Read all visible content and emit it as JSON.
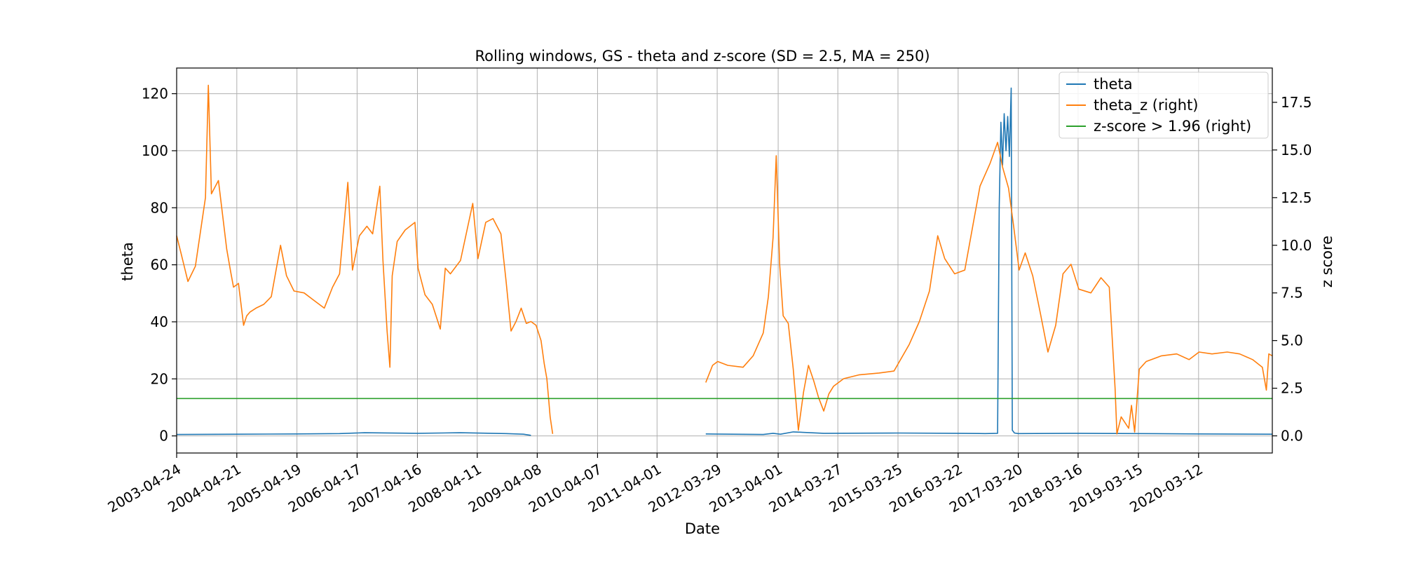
{
  "chart_data": {
    "type": "line",
    "title": "Rolling windows, GS - theta and z-score (SD = 2.5, MA = 250)",
    "xlabel": "Date",
    "ylabel_left": "theta",
    "ylabel_right": "z score",
    "x_range": [
      "2003-04-24",
      "2021-05-31"
    ],
    "ylim_left": [
      -6,
      129
    ],
    "ylim_right": [
      -0.9,
      19.3
    ],
    "yticks_left": [
      0,
      20,
      40,
      60,
      80,
      100,
      120
    ],
    "yticks_right": [
      0.0,
      2.5,
      5.0,
      7.5,
      10.0,
      12.5,
      15.0,
      17.5
    ],
    "xticks": [
      "2003-04-24",
      "2004-04-21",
      "2005-04-19",
      "2006-04-17",
      "2007-04-16",
      "2008-04-11",
      "2009-04-08",
      "2010-04-07",
      "2011-04-01",
      "2012-03-29",
      "2013-04-01",
      "2014-03-27",
      "2015-03-25",
      "2016-03-22",
      "2017-03-20",
      "2018-03-16",
      "2019-03-15",
      "2020-03-12"
    ],
    "grid": true,
    "legend_position": "top-right",
    "colors": {
      "theta": "#1f77b4",
      "theta_z": "#ff7f0e",
      "threshold": "#2ca02c"
    },
    "series": [
      {
        "name": "theta",
        "axis": "left",
        "segments": [
          [
            [
              "2003-04-24",
              0.5
            ],
            [
              "2004-04-21",
              0.6
            ],
            [
              "2005-04-19",
              0.7
            ],
            [
              "2006-01-01",
              0.8
            ],
            [
              "2006-06-01",
              1.1
            ],
            [
              "2007-04-16",
              0.9
            ],
            [
              "2008-01-01",
              1.1
            ],
            [
              "2008-10-01",
              0.8
            ],
            [
              "2009-01-15",
              0.6
            ],
            [
              "2009-03-01",
              0.2
            ]
          ],
          [
            [
              "2012-01-20",
              0.7
            ],
            [
              "2012-07-01",
              0.6
            ],
            [
              "2013-01-01",
              0.5
            ],
            [
              "2013-03-01",
              0.9
            ],
            [
              "2013-04-15",
              0.6
            ],
            [
              "2013-07-01",
              1.4
            ],
            [
              "2014-01-01",
              0.9
            ],
            [
              "2015-03-25",
              1.0
            ],
            [
              "2016-03-22",
              0.9
            ],
            [
              "2016-09-01",
              0.8
            ],
            [
              "2016-11-15",
              0.9
            ],
            [
              "2016-11-25",
              80
            ],
            [
              "2016-12-05",
              110
            ],
            [
              "2016-12-15",
              95
            ],
            [
              "2016-12-25",
              113
            ],
            [
              "2017-01-05",
              100
            ],
            [
              "2017-01-15",
              112
            ],
            [
              "2017-01-25",
              98
            ],
            [
              "2017-02-05",
              122
            ],
            [
              "2017-02-12",
              2
            ],
            [
              "2017-02-25",
              1.0
            ],
            [
              "2017-03-20",
              0.8
            ],
            [
              "2018-03-16",
              0.9
            ],
            [
              "2019-03-15",
              0.8
            ],
            [
              "2020-03-12",
              0.7
            ],
            [
              "2021-05-31",
              0.6
            ]
          ]
        ]
      },
      {
        "name": "theta_z (right)",
        "axis": "right",
        "segments": [
          [
            [
              "2003-04-24",
              10.5
            ],
            [
              "2003-05-20",
              9.6
            ],
            [
              "2003-07-01",
              8.1
            ],
            [
              "2003-08-15",
              8.9
            ],
            [
              "2003-10-15",
              12.5
            ],
            [
              "2003-11-01",
              18.4
            ],
            [
              "2003-11-20",
              12.7
            ],
            [
              "2004-01-01",
              13.4
            ],
            [
              "2004-02-20",
              9.8
            ],
            [
              "2004-03-15",
              8.6
            ],
            [
              "2004-04-01",
              7.8
            ],
            [
              "2004-05-01",
              8.0
            ],
            [
              "2004-06-01",
              5.8
            ],
            [
              "2004-06-20",
              6.3
            ],
            [
              "2004-07-10",
              6.5
            ],
            [
              "2004-08-15",
              6.7
            ],
            [
              "2004-10-01",
              6.9
            ],
            [
              "2004-11-15",
              7.3
            ],
            [
              "2005-01-10",
              10.0
            ],
            [
              "2005-02-15",
              8.4
            ],
            [
              "2005-04-01",
              7.6
            ],
            [
              "2005-06-01",
              7.5
            ],
            [
              "2005-08-01",
              7.1
            ],
            [
              "2005-10-01",
              6.7
            ],
            [
              "2005-11-20",
              7.8
            ],
            [
              "2006-01-01",
              8.5
            ],
            [
              "2006-02-20",
              13.3
            ],
            [
              "2006-03-20",
              8.7
            ],
            [
              "2006-05-01",
              10.5
            ],
            [
              "2006-06-15",
              11.0
            ],
            [
              "2006-07-20",
              10.6
            ],
            [
              "2006-09-01",
              13.1
            ],
            [
              "2006-09-20",
              9.2
            ],
            [
              "2006-10-15",
              5.5
            ],
            [
              "2006-11-01",
              3.6
            ],
            [
              "2006-11-15",
              8.4
            ],
            [
              "2006-12-15",
              10.2
            ],
            [
              "2007-02-01",
              10.8
            ],
            [
              "2007-04-01",
              11.2
            ],
            [
              "2007-04-20",
              8.8
            ],
            [
              "2007-06-01",
              7.4
            ],
            [
              "2007-07-15",
              6.9
            ],
            [
              "2007-09-01",
              5.6
            ],
            [
              "2007-10-01",
              8.8
            ],
            [
              "2007-11-01",
              8.5
            ],
            [
              "2008-01-01",
              9.2
            ],
            [
              "2008-03-15",
              12.2
            ],
            [
              "2008-04-15",
              9.3
            ],
            [
              "2008-06-01",
              11.2
            ],
            [
              "2008-07-15",
              11.4
            ],
            [
              "2008-09-01",
              10.6
            ],
            [
              "2008-10-01",
              8.2
            ],
            [
              "2008-11-01",
              5.5
            ],
            [
              "2008-12-01",
              6.0
            ],
            [
              "2009-01-01",
              6.7
            ],
            [
              "2009-02-01",
              5.9
            ],
            [
              "2009-03-01",
              6.0
            ],
            [
              "2009-04-01",
              5.8
            ],
            [
              "2009-05-01",
              5.0
            ],
            [
              "2009-05-20",
              3.8
            ],
            [
              "2009-06-05",
              3.0
            ],
            [
              "2009-06-15",
              2.0
            ],
            [
              "2009-06-25",
              1.0
            ],
            [
              "2009-07-10",
              0.1
            ]
          ],
          [
            [
              "2012-01-20",
              2.8
            ],
            [
              "2012-03-01",
              3.7
            ],
            [
              "2012-04-01",
              3.9
            ],
            [
              "2012-06-01",
              3.7
            ],
            [
              "2012-09-01",
              3.6
            ],
            [
              "2012-11-01",
              4.2
            ],
            [
              "2013-01-01",
              5.4
            ],
            [
              "2013-02-01",
              7.3
            ],
            [
              "2013-03-01",
              10.4
            ],
            [
              "2013-03-20",
              14.7
            ],
            [
              "2013-04-10",
              9.0
            ],
            [
              "2013-05-01",
              6.3
            ],
            [
              "2013-06-01",
              5.9
            ],
            [
              "2013-07-01",
              3.5
            ],
            [
              "2013-08-01",
              0.3
            ],
            [
              "2013-09-01",
              2.3
            ],
            [
              "2013-10-01",
              3.7
            ],
            [
              "2013-11-01",
              2.9
            ],
            [
              "2013-12-01",
              2.0
            ],
            [
              "2014-01-01",
              1.3
            ],
            [
              "2014-02-01",
              2.2
            ],
            [
              "2014-03-01",
              2.6
            ],
            [
              "2014-05-01",
              3.0
            ],
            [
              "2014-08-01",
              3.2
            ],
            [
              "2014-12-01",
              3.3
            ],
            [
              "2015-03-01",
              3.4
            ],
            [
              "2015-06-01",
              4.8
            ],
            [
              "2015-08-01",
              6.0
            ],
            [
              "2015-10-01",
              7.6
            ],
            [
              "2015-11-20",
              10.5
            ],
            [
              "2016-01-01",
              9.3
            ],
            [
              "2016-03-01",
              8.5
            ],
            [
              "2016-05-01",
              8.7
            ],
            [
              "2016-08-01",
              13.1
            ],
            [
              "2016-10-01",
              14.3
            ],
            [
              "2016-11-15",
              15.4
            ],
            [
              "2016-12-15",
              14.1
            ],
            [
              "2017-01-20",
              13.0
            ],
            [
              "2017-02-20",
              11.0
            ],
            [
              "2017-03-25",
              8.7
            ],
            [
              "2017-05-01",
              9.6
            ],
            [
              "2017-06-15",
              8.4
            ],
            [
              "2017-08-01",
              6.4
            ],
            [
              "2017-09-15",
              4.4
            ],
            [
              "2017-11-01",
              5.8
            ],
            [
              "2017-12-15",
              8.5
            ],
            [
              "2018-02-01",
              9.0
            ],
            [
              "2018-03-20",
              7.7
            ],
            [
              "2018-06-01",
              7.5
            ],
            [
              "2018-08-01",
              8.3
            ],
            [
              "2018-09-20",
              7.8
            ],
            [
              "2018-10-25",
              2.5
            ],
            [
              "2018-11-05",
              0.1
            ],
            [
              "2018-12-01",
              1.0
            ],
            [
              "2019-01-15",
              0.4
            ],
            [
              "2019-02-01",
              1.6
            ],
            [
              "2019-02-20",
              0.2
            ],
            [
              "2019-03-20",
              3.5
            ],
            [
              "2019-05-01",
              3.9
            ],
            [
              "2019-08-01",
              4.2
            ],
            [
              "2019-11-01",
              4.3
            ],
            [
              "2020-01-15",
              4.0
            ],
            [
              "2020-03-15",
              4.4
            ],
            [
              "2020-06-01",
              4.3
            ],
            [
              "2020-09-01",
              4.4
            ],
            [
              "2020-11-15",
              4.3
            ],
            [
              "2021-02-01",
              4.0
            ],
            [
              "2021-04-01",
              3.6
            ],
            [
              "2021-04-25",
              2.4
            ],
            [
              "2021-05-10",
              4.3
            ],
            [
              "2021-05-31",
              4.2
            ]
          ]
        ]
      },
      {
        "name": "z-score > 1.96 (right)",
        "axis": "right",
        "segments": [
          [
            [
              "2003-04-24",
              1.96
            ],
            [
              "2021-05-31",
              1.96
            ]
          ]
        ]
      }
    ]
  }
}
